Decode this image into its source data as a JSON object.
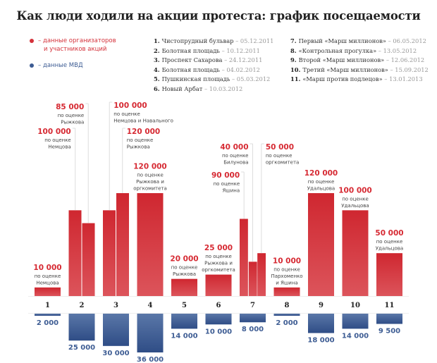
{
  "title": "Как люди ходили на акции протеста: график посещаемости",
  "legend": {
    "organizers": {
      "text_line1": "– данные организаторов",
      "text_line2": "и участников акций",
      "color": "#d4313a"
    },
    "police": {
      "text": "– данные МВД",
      "color": "#3d5c93"
    }
  },
  "events_left": [
    {
      "num": "1.",
      "name": "Чистопрудный бульвар",
      "date": "05.12.2011"
    },
    {
      "num": "2.",
      "name": "Болотная площадь",
      "date": "10.12.2011"
    },
    {
      "num": "3.",
      "name": "Проспект Сахарова",
      "date": "24.12.2011"
    },
    {
      "num": "4.",
      "name": "Болотная площадь",
      "date": "04.02.2012"
    },
    {
      "num": "5.",
      "name": "Пушкинская площадь",
      "date": "05.03.2012"
    },
    {
      "num": "6.",
      "name": "Новый Арбат",
      "date": "10.03.2012"
    }
  ],
  "events_right": [
    {
      "num": "7.",
      "name": "Первый «Марш миллионов»",
      "date": "06.05.2012"
    },
    {
      "num": "8.",
      "name": "«Контрольная прогулка»",
      "date": "13.05.2012"
    },
    {
      "num": "9.",
      "name": "Второй «Марш миллионов»",
      "date": "12.06.2012"
    },
    {
      "num": "10.",
      "name": "Третий «Марш миллионов»",
      "date": "15.09.2012"
    },
    {
      "num": "11.",
      "name": "«Марш против подлецов»",
      "date": "13.01.2013"
    }
  ],
  "chart_data": {
    "type": "bar",
    "title": "Как люди ходили на акции протеста: график посещаемости",
    "xlabel": "",
    "ylabel": "",
    "categories": [
      "1",
      "2",
      "3",
      "4",
      "5",
      "6",
      "7",
      "8",
      "9",
      "10",
      "11"
    ],
    "colors": {
      "organizers": "#d4313a",
      "police": "#4a6aa0"
    },
    "organizers_ylim": [
      0,
      120000
    ],
    "police_ylim": [
      0,
      36000
    ],
    "series": [
      {
        "name": "данные организаторов и участников акций",
        "orientation": "up",
        "groups": [
          [
            {
              "value": 10000,
              "label": "10 000",
              "note": [
                "по оценке",
                "Немцова"
              ]
            }
          ],
          [
            {
              "value": 100000,
              "label": "100 000",
              "note": [
                "по оценке",
                "Немцова"
              ]
            },
            {
              "value": 85000,
              "label": "85 000",
              "note": [
                "по оценке",
                "Рыжкова"
              ]
            }
          ],
          [
            {
              "value": 100000,
              "label": "100 000",
              "note": [
                "по оценке",
                "Немцова и Навального"
              ]
            },
            {
              "value": 120000,
              "label": "120 000",
              "note": [
                "по оценке",
                "Рыжкова"
              ]
            }
          ],
          [
            {
              "value": 120000,
              "label": "120 000",
              "note": [
                "по оценке",
                "Рыжкова и",
                "оргкомитета"
              ]
            }
          ],
          [
            {
              "value": 20000,
              "label": "20 000",
              "note": [
                "по оценке",
                "Рыжкова"
              ]
            }
          ],
          [
            {
              "value": 25000,
              "label": "25 000",
              "note": [
                "по оценке",
                "Рыжкова и",
                "оргкомитета"
              ]
            }
          ],
          [
            {
              "value": 90000,
              "label": "90 000",
              "note": [
                "по оценке",
                "Яшина"
              ]
            },
            {
              "value": 40000,
              "label": "40 000",
              "note": [
                "по оценке",
                "Билунова"
              ]
            },
            {
              "value": 50000,
              "label": "50 000",
              "note": [
                "по оценке",
                "оргкомитета"
              ]
            }
          ],
          [
            {
              "value": 10000,
              "label": "10 000",
              "note": [
                "по оценке",
                "Пархоменко",
                "и Яшина"
              ]
            }
          ],
          [
            {
              "value": 120000,
              "label": "120 000",
              "note": [
                "по оценке",
                "Удальцова"
              ]
            }
          ],
          [
            {
              "value": 100000,
              "label": "100 000",
              "note": [
                "по оценке",
                "Удальцова"
              ]
            }
          ],
          [
            {
              "value": 50000,
              "label": "50 000",
              "note": [
                "по оценке",
                "Удальцова"
              ]
            }
          ]
        ]
      },
      {
        "name": "данные МВД",
        "orientation": "down",
        "values": [
          2000,
          25000,
          30000,
          36000,
          14000,
          10000,
          8000,
          2000,
          18000,
          14000,
          9500
        ],
        "labels": [
          "2 000",
          "25 000",
          "30 000",
          "36 000",
          "14 000",
          "10 000",
          "8 000",
          "2 000",
          "18 000",
          "14 000",
          "9 500"
        ]
      }
    ]
  }
}
